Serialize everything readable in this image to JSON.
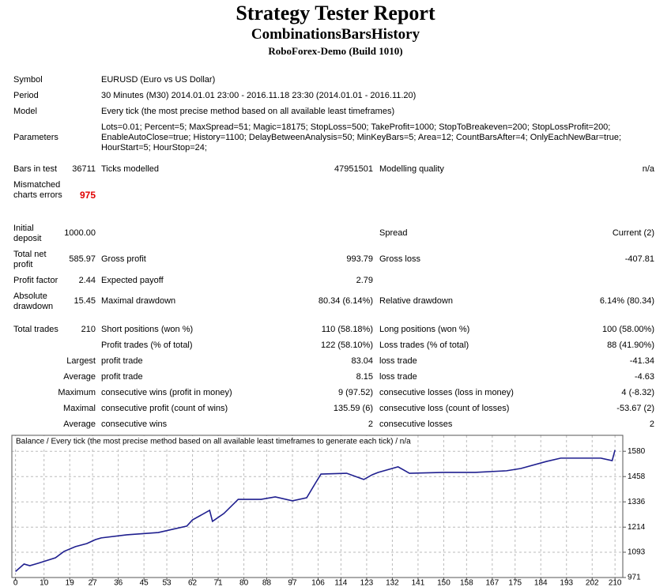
{
  "header": {
    "title": "Strategy Tester Report",
    "subtitle": "CombinationsBarsHistory",
    "server": "RoboForex-Demo (Build 1010)"
  },
  "table": {
    "rows": [
      [
        "Symbol",
        "EURUSD (Euro vs US Dollar)"
      ],
      [
        "Period",
        "30 Minutes (M30) 2014.01.01 23:00 - 2016.11.18 23:30 (2014.01.01 - 2016.11.20)"
      ],
      [
        "Model",
        "Every tick (the most precise method based on all available least timeframes)"
      ],
      [
        "Parameters",
        [
          "Lots=0.01; Percent=5; MaxSpread=51; Magic=18175; StopLoss=500; TakeProfit=1000; StopToBreakeven=200; StopLossProfit=200;",
          "EnableAutoClose=true; History=1100; DelayBetweenAnalysis=50; MinKeyBars=5; Area=12; CountBarsAfter=4; OnlyEachNewBar=true;",
          "HourStart=5; HourStop=24;"
        ]
      ],
      [
        "Bars in test",
        "36711",
        "Ticks modelled",
        "47951501",
        "Modelling quality",
        "n/a"
      ],
      [
        "Mismatched charts errors",
        "975"
      ],
      [
        "Initial deposit",
        "1000.00",
        "Spread",
        "Current (2)"
      ],
      [
        "Total net profit",
        "585.97",
        "Gross profit",
        "993.79",
        "Gross loss",
        "-407.81"
      ],
      [
        "Profit factor",
        "2.44",
        "Expected payoff",
        "2.79"
      ],
      [
        "Absolute drawdown",
        "15.45",
        "Maximal drawdown",
        "80.34 (6.14%)",
        "Relative drawdown",
        "6.14% (80.34)"
      ],
      [
        "Total trades",
        "210",
        "Short positions (won %)",
        "110 (58.18%)",
        "Long positions (won %)",
        "100 (58.00%)"
      ],
      [
        "Profit trades (% of total)",
        "122 (58.10%)",
        "Loss trades (% of total)",
        "88 (41.90%)"
      ],
      [
        "Largest",
        "profit trade",
        "83.04",
        "loss trade",
        "-41.34"
      ],
      [
        "Average",
        "profit trade",
        "8.15",
        "loss trade",
        "-4.63"
      ],
      [
        "Maximum",
        "consecutive wins (profit in money)",
        "9 (97.52)",
        "consecutive losses (loss in money)",
        "4 (-8.32)"
      ],
      [
        "Maximal",
        "consecutive profit (count of wins)",
        "135.59 (6)",
        "consecutive loss (count of losses)",
        "-53.67 (2)"
      ],
      [
        "Average",
        "consecutive wins",
        "2",
        "consecutive losses",
        "2"
      ]
    ]
  },
  "chart_data": {
    "type": "line",
    "title": "Balance / Every tick (the most precise method based on all available least timeframes to generate each tick) / n/a",
    "x": [
      0,
      3,
      5,
      8,
      14,
      17,
      21,
      25,
      28,
      30,
      39,
      50,
      60,
      62,
      68,
      69,
      73,
      78,
      86,
      91,
      97,
      102,
      105,
      107,
      116,
      122,
      125,
      127,
      134,
      138,
      150,
      161,
      172,
      177,
      186,
      191,
      205,
      209,
      210
    ],
    "series": [
      {
        "name": "Balance",
        "color": "#1f1f8f",
        "values": [
          1000,
          1036,
          1028,
          1040,
          1066,
          1097,
          1120,
          1135,
          1154,
          1162,
          1177,
          1188,
          1219,
          1249,
          1295,
          1242,
          1280,
          1348,
          1348,
          1360,
          1341,
          1356,
          1425,
          1470,
          1474,
          1444,
          1467,
          1478,
          1505,
          1474,
          1478,
          1478,
          1486,
          1497,
          1531,
          1547,
          1547,
          1535,
          1586
        ]
      }
    ],
    "xlim": [
      -1,
      213
    ],
    "ylim": [
      971,
      1657
    ],
    "xticks": [
      0,
      10,
      19,
      27,
      36,
      45,
      53,
      62,
      71,
      80,
      88,
      97,
      106,
      114,
      123,
      132,
      141,
      150,
      158,
      167,
      175,
      184,
      193,
      202,
      210
    ],
    "yticks": [
      971,
      1093,
      1214,
      1336,
      1458,
      1580
    ],
    "grid": true
  }
}
